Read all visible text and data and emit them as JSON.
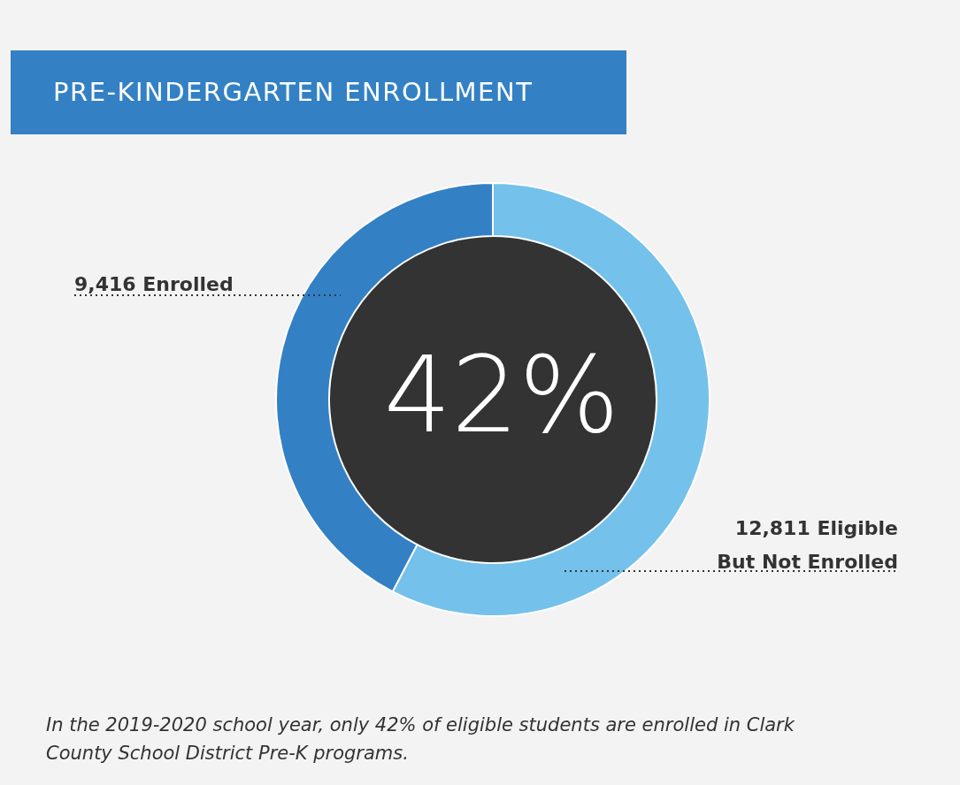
{
  "chart_data": {
    "type": "donut",
    "title": "PRE-KINDERGARTEN ENROLLMENT",
    "categories": [
      "Enrolled",
      "Eligible But Not Enrolled"
    ],
    "values": [
      9416,
      12811
    ],
    "value_labels": [
      "9,416",
      "12,811"
    ],
    "colors": [
      "#3381c4",
      "#74c1eb"
    ],
    "annotations": [
      "42%",
      "In the 2019-2020 school year, only 42% of eligible students are enrolled in Clark County School District Pre-K programs."
    ]
  }
}
